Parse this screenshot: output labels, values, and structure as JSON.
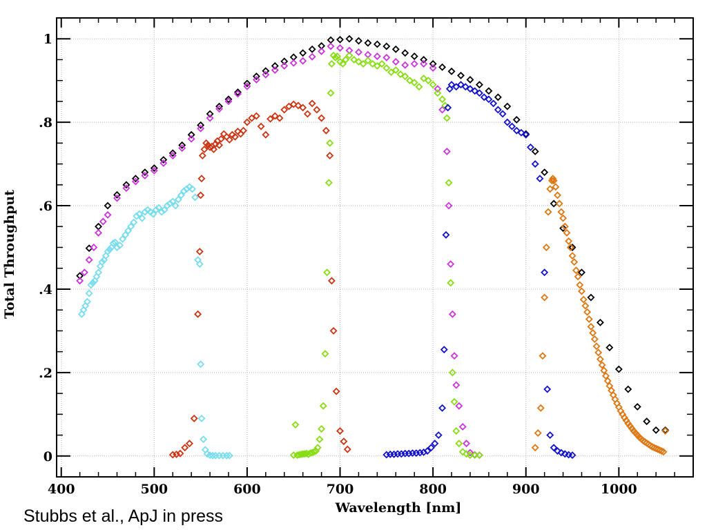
{
  "credit": "Stubbs et al., ApJ in press",
  "chart_data": {
    "type": "scatter",
    "title": "",
    "xlabel": "Wavelength [nm]",
    "ylabel": "Total Throughput",
    "xlim": [
      395,
      1080
    ],
    "ylim": [
      -0.05,
      1.05
    ],
    "x_ticks": [
      400,
      500,
      600,
      700,
      800,
      900,
      1000
    ],
    "y_ticks": [
      0,
      0.2,
      0.4,
      0.6,
      0.8,
      1.0
    ],
    "y_tick_labels": [
      "0",
      ".2",
      ".4",
      ".6",
      ".8",
      "1"
    ],
    "grid": "dotted, major ticks",
    "marker": "diamond (open)",
    "series": [
      {
        "color": "#000000",
        "x": [
          420,
          430,
          440,
          450,
          460,
          470,
          480,
          490,
          500,
          510,
          520,
          530,
          540,
          550,
          560,
          570,
          580,
          590,
          600,
          610,
          620,
          630,
          640,
          650,
          660,
          670,
          680,
          690,
          700,
          710,
          720,
          730,
          740,
          750,
          760,
          770,
          780,
          790,
          800,
          810,
          820,
          830,
          840,
          850,
          860,
          870,
          880,
          890,
          900,
          910,
          920,
          930,
          940,
          950,
          960,
          970,
          980,
          990,
          1000,
          1010,
          1020,
          1030,
          1040,
          1050
        ],
        "y": [
          0.432,
          0.498,
          0.55,
          0.6,
          0.626,
          0.65,
          0.665,
          0.68,
          0.69,
          0.71,
          0.726,
          0.745,
          0.77,
          0.793,
          0.82,
          0.838,
          0.855,
          0.872,
          0.893,
          0.91,
          0.923,
          0.935,
          0.946,
          0.956,
          0.966,
          0.975,
          0.983,
          0.997,
          0.998,
          1.0,
          0.995,
          0.99,
          0.987,
          0.982,
          0.975,
          0.966,
          0.958,
          0.95,
          0.94,
          0.932,
          0.922,
          0.912,
          0.902,
          0.89,
          0.875,
          0.86,
          0.838,
          0.806,
          0.772,
          0.73,
          0.68,
          0.605,
          0.546,
          0.5,
          0.44,
          0.38,
          0.32,
          0.26,
          0.208,
          0.16,
          0.118,
          0.083,
          0.062,
          0.062
        ]
      },
      {
        "color": "#cc33dd",
        "x": [
          420,
          425,
          430,
          435,
          440,
          445,
          450,
          460,
          470,
          480,
          490,
          500,
          510,
          520,
          530,
          540,
          550,
          560,
          570,
          580,
          590,
          600,
          610,
          620,
          630,
          640,
          650,
          660,
          670,
          680,
          690,
          700,
          710,
          720,
          730,
          740,
          750,
          760,
          770,
          780,
          790,
          800,
          805,
          810,
          815,
          817,
          819,
          821,
          823,
          825,
          828,
          832,
          836,
          840,
          845,
          850
        ],
        "y": [
          0.42,
          0.44,
          0.47,
          0.5,
          0.535,
          0.562,
          0.578,
          0.618,
          0.642,
          0.658,
          0.672,
          0.684,
          0.702,
          0.72,
          0.738,
          0.76,
          0.785,
          0.81,
          0.832,
          0.85,
          0.868,
          0.886,
          0.902,
          0.914,
          0.925,
          0.935,
          0.942,
          0.947,
          0.957,
          0.97,
          0.982,
          0.978,
          0.972,
          0.968,
          0.962,
          0.958,
          0.955,
          0.945,
          0.937,
          0.94,
          0.94,
          0.93,
          0.88,
          0.83,
          0.73,
          0.6,
          0.46,
          0.34,
          0.24,
          0.17,
          0.12,
          0.07,
          0.03,
          0.008,
          0.003,
          0.002
        ]
      },
      {
        "color": "#77ddee",
        "x": [
          422,
          424,
          426,
          428,
          430,
          432,
          434,
          436,
          438,
          440,
          442,
          444,
          446,
          448,
          450,
          452,
          454,
          456,
          458,
          460,
          463,
          466,
          469,
          472,
          475,
          478,
          481,
          484,
          487,
          490,
          493,
          496,
          499,
          502,
          505,
          508,
          511,
          514,
          517,
          520,
          523,
          526,
          529,
          532,
          535,
          538,
          541,
          544,
          547,
          549,
          550,
          551,
          553,
          555,
          557,
          560,
          563,
          566,
          570,
          574,
          578,
          581
        ],
        "y": [
          0.34,
          0.35,
          0.36,
          0.37,
          0.39,
          0.41,
          0.415,
          0.42,
          0.43,
          0.44,
          0.455,
          0.465,
          0.47,
          0.48,
          0.49,
          0.495,
          0.5,
          0.51,
          0.512,
          0.5,
          0.505,
          0.52,
          0.53,
          0.54,
          0.55,
          0.56,
          0.575,
          0.58,
          0.57,
          0.585,
          0.59,
          0.585,
          0.58,
          0.59,
          0.595,
          0.585,
          0.59,
          0.6,
          0.605,
          0.61,
          0.6,
          0.615,
          0.625,
          0.635,
          0.64,
          0.645,
          0.64,
          0.62,
          0.47,
          0.46,
          0.22,
          0.09,
          0.04,
          0.015,
          0.005,
          0.002,
          0.001,
          0.001,
          0.001,
          0.001,
          0.001,
          0.001
        ]
      },
      {
        "color": "#cc3311",
        "x": [
          520,
          524,
          528,
          533,
          538,
          543,
          547,
          549,
          550,
          551,
          552,
          554,
          556,
          558,
          560,
          562,
          564,
          566,
          568,
          570,
          572,
          575,
          578,
          581,
          584,
          587,
          590,
          593,
          596,
          600,
          605,
          610,
          615,
          620,
          625,
          630,
          635,
          640,
          645,
          650,
          655,
          660,
          665,
          670,
          675,
          680,
          685,
          689,
          691,
          693,
          696,
          700,
          704,
          708
        ],
        "y": [
          0.003,
          0.004,
          0.006,
          0.02,
          0.03,
          0.09,
          0.34,
          0.49,
          0.625,
          0.665,
          0.72,
          0.735,
          0.75,
          0.745,
          0.74,
          0.742,
          0.735,
          0.748,
          0.755,
          0.745,
          0.76,
          0.772,
          0.765,
          0.758,
          0.77,
          0.765,
          0.778,
          0.772,
          0.78,
          0.8,
          0.81,
          0.815,
          0.79,
          0.77,
          0.808,
          0.815,
          0.81,
          0.83,
          0.838,
          0.843,
          0.84,
          0.835,
          0.82,
          0.845,
          0.83,
          0.81,
          0.78,
          0.72,
          0.42,
          0.3,
          0.155,
          0.06,
          0.035,
          0.016
        ]
      },
      {
        "color": "#88dd11",
        "x": [
          650,
          652,
          654,
          656,
          658,
          660,
          662,
          664,
          666,
          668,
          670,
          672,
          674,
          676,
          678,
          680,
          682,
          684,
          686,
          688,
          689,
          690,
          691,
          693,
          695,
          697,
          700,
          703,
          706,
          710,
          715,
          720,
          725,
          730,
          735,
          740,
          745,
          750,
          755,
          760,
          765,
          770,
          775,
          780,
          785,
          790,
          795,
          800,
          805,
          810,
          813,
          815,
          817,
          819,
          821,
          823,
          825,
          828,
          832,
          836,
          840,
          845,
          850
        ],
        "y": [
          0.002,
          0.075,
          0.002,
          0.003,
          0.004,
          0.005,
          0.005,
          0.006,
          0.004,
          0.007,
          0.008,
          0.01,
          0.012,
          0.02,
          0.04,
          0.065,
          0.12,
          0.245,
          0.44,
          0.655,
          0.75,
          0.87,
          0.94,
          0.96,
          0.955,
          0.958,
          0.945,
          0.94,
          0.95,
          0.96,
          0.95,
          0.945,
          0.94,
          0.948,
          0.94,
          0.935,
          0.94,
          0.93,
          0.92,
          0.925,
          0.915,
          0.91,
          0.9,
          0.895,
          0.885,
          0.905,
          0.9,
          0.89,
          0.87,
          0.855,
          0.84,
          0.81,
          0.655,
          0.415,
          0.2,
          0.13,
          0.06,
          0.03,
          0.01,
          0.005,
          0.002,
          0.002,
          0.002
        ]
      },
      {
        "color": "#1111cc",
        "x": [
          750,
          754,
          758,
          762,
          766,
          770,
          774,
          778,
          782,
          786,
          790,
          794,
          798,
          802,
          806,
          810,
          812,
          814,
          816,
          818,
          820,
          825,
          830,
          835,
          840,
          845,
          850,
          855,
          860,
          865,
          870,
          875,
          880,
          885,
          890,
          895,
          900,
          905,
          910,
          915,
          920,
          923,
          926,
          930,
          934,
          938,
          942,
          946,
          950
        ],
        "y": [
          0.003,
          0.004,
          0.004,
          0.005,
          0.005,
          0.006,
          0.006,
          0.007,
          0.007,
          0.008,
          0.009,
          0.012,
          0.02,
          0.03,
          0.05,
          0.115,
          0.255,
          0.53,
          0.835,
          0.88,
          0.89,
          0.885,
          0.89,
          0.885,
          0.88,
          0.875,
          0.87,
          0.86,
          0.855,
          0.845,
          0.83,
          0.82,
          0.8,
          0.79,
          0.78,
          0.775,
          0.77,
          0.74,
          0.7,
          0.665,
          0.44,
          0.16,
          0.05,
          0.02,
          0.012,
          0.008,
          0.005,
          0.003,
          0.002
        ]
      },
      {
        "color": "#dd7711",
        "x": [
          910,
          913,
          916,
          918,
          920,
          922,
          924,
          926,
          928,
          929,
          930,
          932,
          934,
          936,
          938,
          940,
          942,
          944,
          946,
          948,
          950,
          952,
          954,
          956,
          958,
          960,
          962,
          964,
          966,
          968,
          970,
          972,
          974,
          976,
          978,
          980,
          982,
          984,
          986,
          988,
          990,
          992,
          994,
          996,
          998,
          1000,
          1002,
          1004,
          1006,
          1008,
          1010,
          1012,
          1014,
          1016,
          1018,
          1020,
          1022,
          1024,
          1026,
          1028,
          1030,
          1032,
          1034,
          1036,
          1038,
          1040,
          1042,
          1044,
          1046,
          1048,
          1050
        ],
        "y": [
          0.02,
          0.055,
          0.115,
          0.24,
          0.38,
          0.5,
          0.585,
          0.64,
          0.66,
          0.665,
          0.66,
          0.645,
          0.625,
          0.605,
          0.585,
          0.57,
          0.55,
          0.535,
          0.515,
          0.5,
          0.48,
          0.465,
          0.445,
          0.43,
          0.41,
          0.395,
          0.375,
          0.36,
          0.345,
          0.328,
          0.31,
          0.295,
          0.28,
          0.263,
          0.248,
          0.232,
          0.218,
          0.205,
          0.192,
          0.18,
          0.168,
          0.157,
          0.146,
          0.136,
          0.126,
          0.117,
          0.108,
          0.1,
          0.092,
          0.085,
          0.078,
          0.072,
          0.066,
          0.06,
          0.055,
          0.05,
          0.045,
          0.041,
          0.037,
          0.034,
          0.031,
          0.028,
          0.025,
          0.022,
          0.02,
          0.018,
          0.016,
          0.014,
          0.012,
          0.01,
          0.06
        ]
      }
    ]
  }
}
